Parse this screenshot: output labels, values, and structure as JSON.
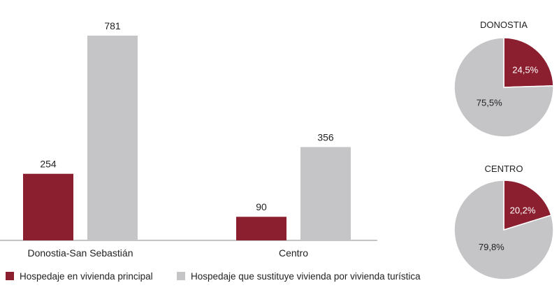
{
  "chart_data": [
    {
      "type": "bar",
      "categories": [
        "Donostia-San Sebastián",
        "Centro"
      ],
      "series": [
        {
          "name": "Hospedaje en vivienda principal",
          "values": [
            254,
            90
          ],
          "color": "#8b1f2f"
        },
        {
          "name": "Hospedaje que sustituye vivienda por vivienda turística",
          "values": [
            781,
            356
          ],
          "color": "#c5c5c7"
        }
      ],
      "value_labels": [
        [
          "254",
          "90"
        ],
        [
          "781",
          "356"
        ]
      ],
      "ylim": [
        0,
        781
      ],
      "grid": false,
      "legend": "bottom"
    },
    {
      "type": "pie",
      "title": "DONOSTIA",
      "labels": [
        "Hospedaje en vivienda principal",
        "Hospedaje que sustituye vivienda por vivienda turística"
      ],
      "values": [
        24.5,
        75.5
      ],
      "value_labels": [
        "24,5%",
        "75,5%"
      ],
      "colors": [
        "#8b1f2f",
        "#c5c5c7"
      ]
    },
    {
      "type": "pie",
      "title": "CENTRO",
      "labels": [
        "Hospedaje en vivienda principal",
        "Hospedaje que sustituye vivienda por vivienda turística"
      ],
      "values": [
        20.2,
        79.8
      ],
      "value_labels": [
        "20,2%",
        "79,8%"
      ],
      "colors": [
        "#8b1f2f",
        "#c5c5c7"
      ]
    }
  ]
}
